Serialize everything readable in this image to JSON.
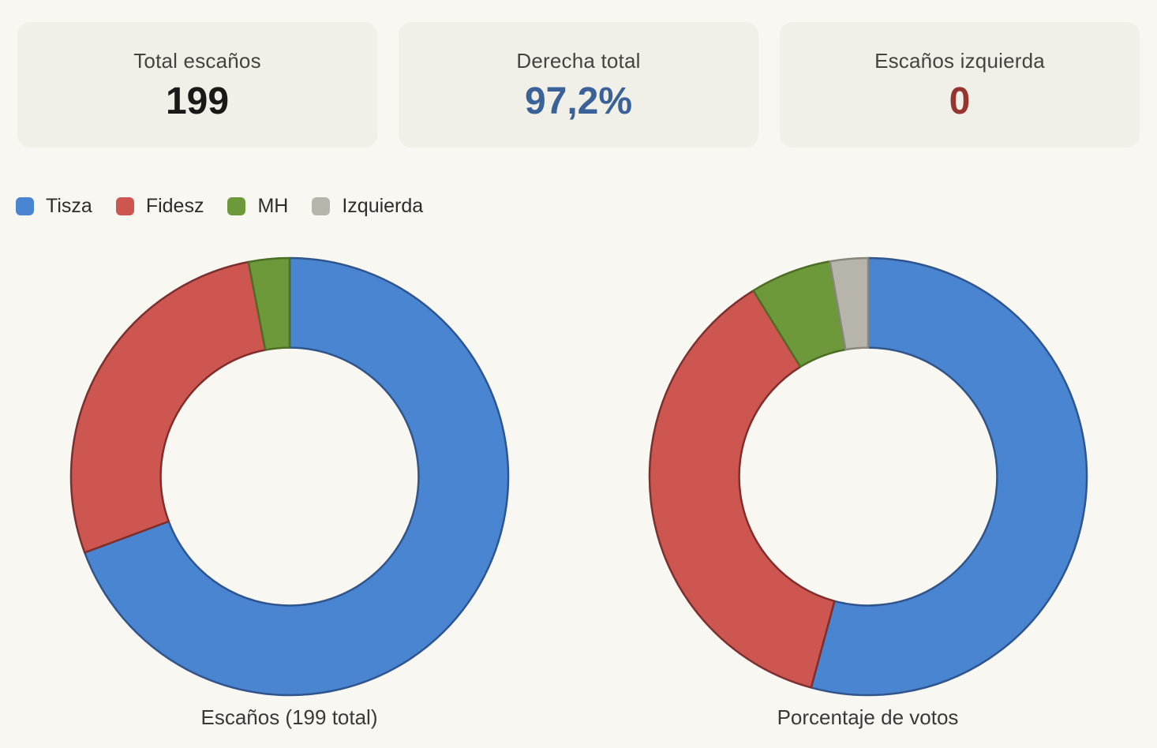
{
  "colors": {
    "page_bg": "#f8f7f1",
    "card_bg": "#f1f0e8"
  },
  "cards": [
    {
      "label": "Total escaños",
      "value": "199",
      "value_color": "#1a1917"
    },
    {
      "label": "Derecha total",
      "value": "97,2%",
      "value_color": "#3a6298"
    },
    {
      "label": "Escaños izquierda",
      "value": "0",
      "value_color": "#96342f"
    }
  ],
  "legend": {
    "items": [
      {
        "label": "Tisza",
        "color": "#4a85d2"
      },
      {
        "label": "Fidesz",
        "color": "#cd5750"
      },
      {
        "label": "MH",
        "color": "#6e993a"
      },
      {
        "label": "Izquierda",
        "color": "#b7b4ab"
      }
    ]
  },
  "chart_data": [
    {
      "type": "donut",
      "title": "Escaños (199 total)",
      "categories": [
        "Tisza",
        "Fidesz",
        "MH",
        "Izquierda"
      ],
      "values": [
        138,
        55,
        6,
        0
      ],
      "total": 199,
      "colors": [
        "#4a85d2",
        "#cd5750",
        "#6e993a",
        "#b7b4ab"
      ],
      "border_colors": [
        "#2f558c",
        "#7e2f2d",
        "#4c6e24",
        "#89867e"
      ],
      "inner_radius_ratio": 0.59,
      "start_angle_deg": 0,
      "direction": "clockwise",
      "legend_position": "top-left-shared"
    },
    {
      "type": "donut",
      "title": "Porcentaje de votos",
      "categories": [
        "Tisza",
        "Fidesz",
        "MH",
        "Izquierda"
      ],
      "values": [
        54.2,
        37.0,
        6.0,
        2.8
      ],
      "total": 100,
      "colors": [
        "#4a85d2",
        "#cd5750",
        "#6e993a",
        "#b7b4ab"
      ],
      "border_colors": [
        "#2f558c",
        "#7e2f2d",
        "#4c6e24",
        "#89867e"
      ],
      "inner_radius_ratio": 0.59,
      "start_angle_deg": 0,
      "direction": "clockwise",
      "legend_position": "top-left-shared"
    }
  ]
}
